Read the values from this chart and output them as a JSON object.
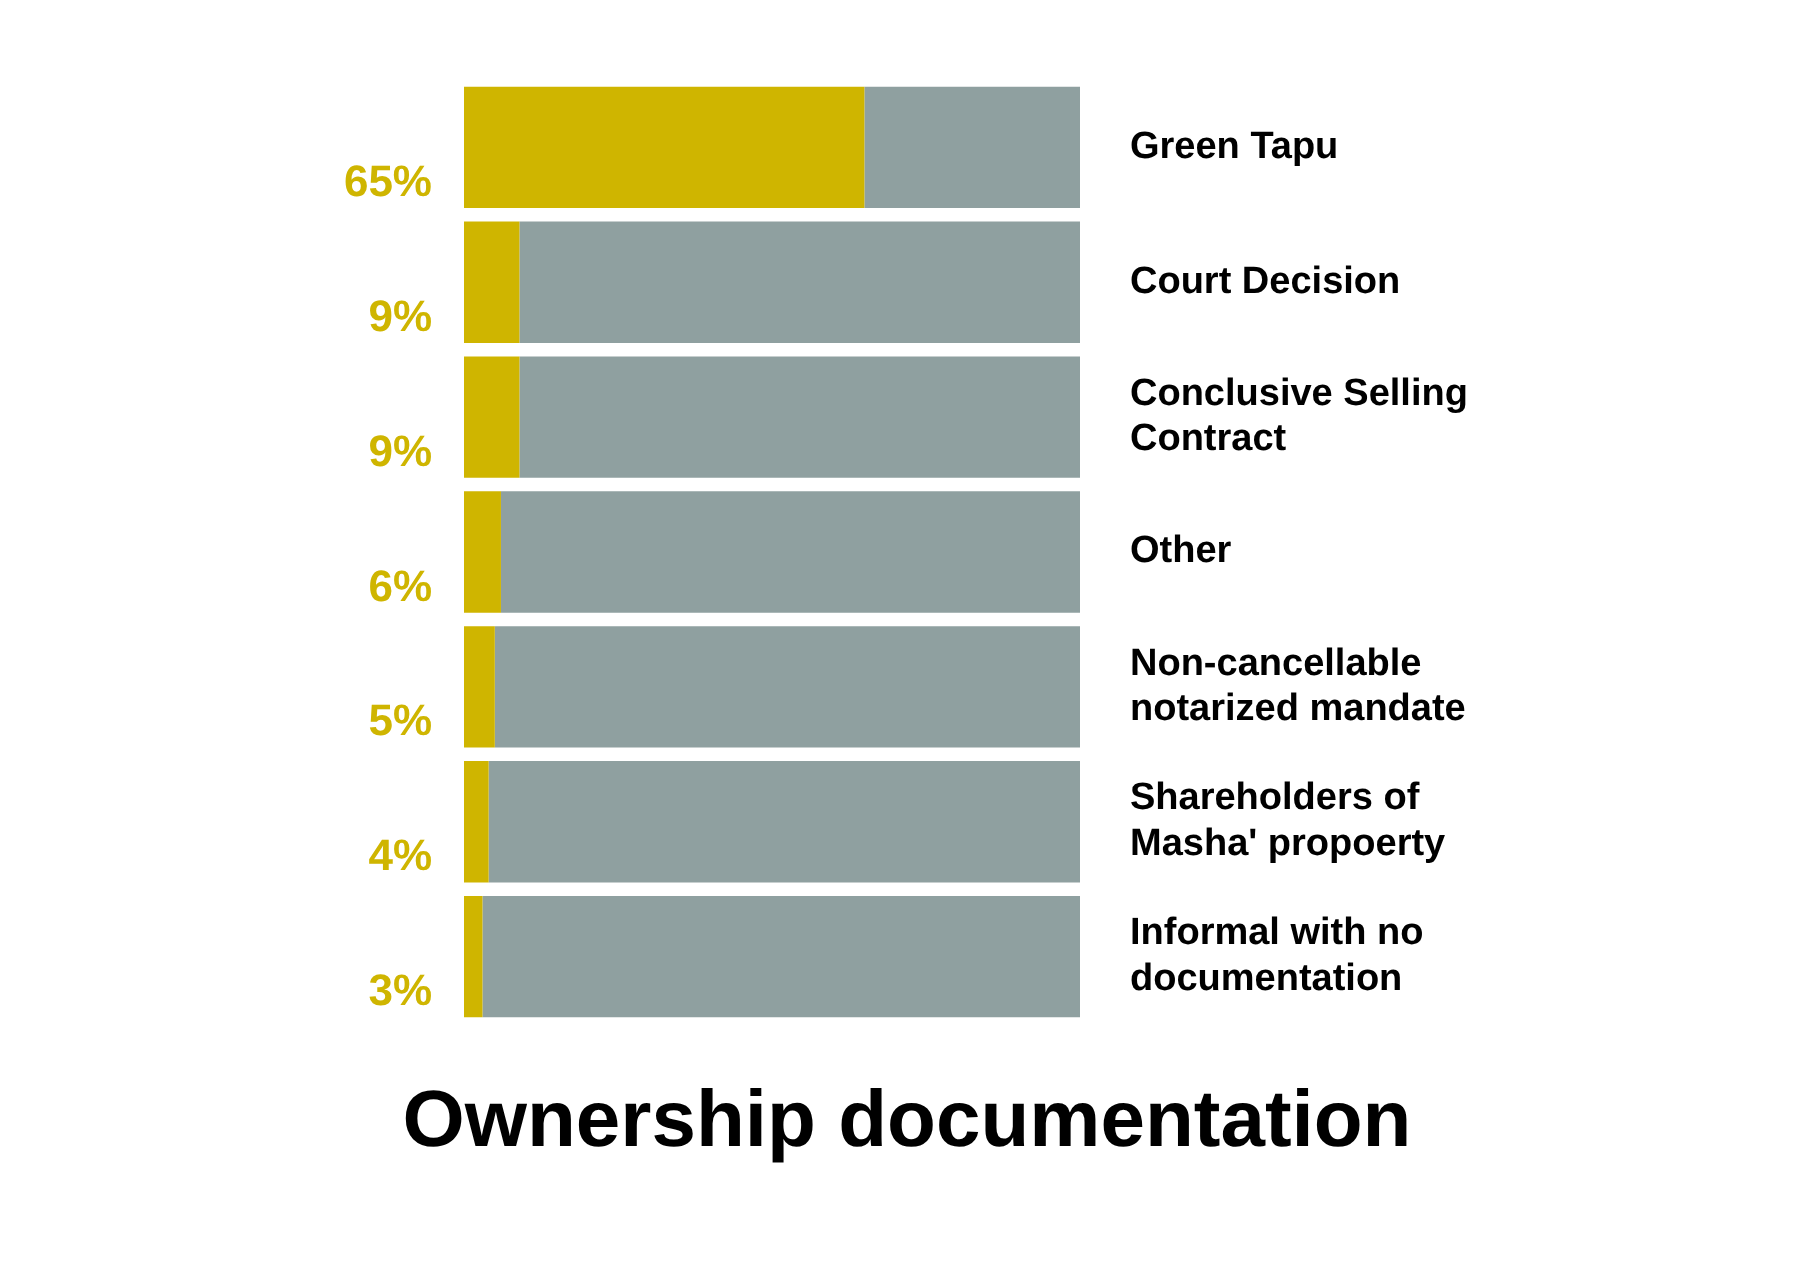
{
  "chart_data": {
    "type": "bar",
    "orientation": "horizontal",
    "stacked": true,
    "title": "Ownership documentation",
    "categories": [
      "Green Tapu",
      "Court Decision",
      "Conclusive Selling Contract",
      "Other",
      "Non-cancellable notarized mandate",
      "Shareholders of Masha' propoerty",
      "Informal with no documentation"
    ],
    "series": [
      {
        "color": "#cfb500",
        "values": [
          65,
          9,
          9,
          6,
          5,
          4,
          3
        ],
        "value_labels": [
          "65%",
          "9%",
          "9%",
          "6%",
          "5%",
          "4%",
          "3%"
        ]
      },
      {
        "color": "#8fa0a0",
        "values": [
          35,
          91,
          91,
          94,
          95,
          96,
          97
        ]
      }
    ],
    "xlim": [
      0,
      100
    ],
    "tick_labels": "y",
    "legend": false
  }
}
